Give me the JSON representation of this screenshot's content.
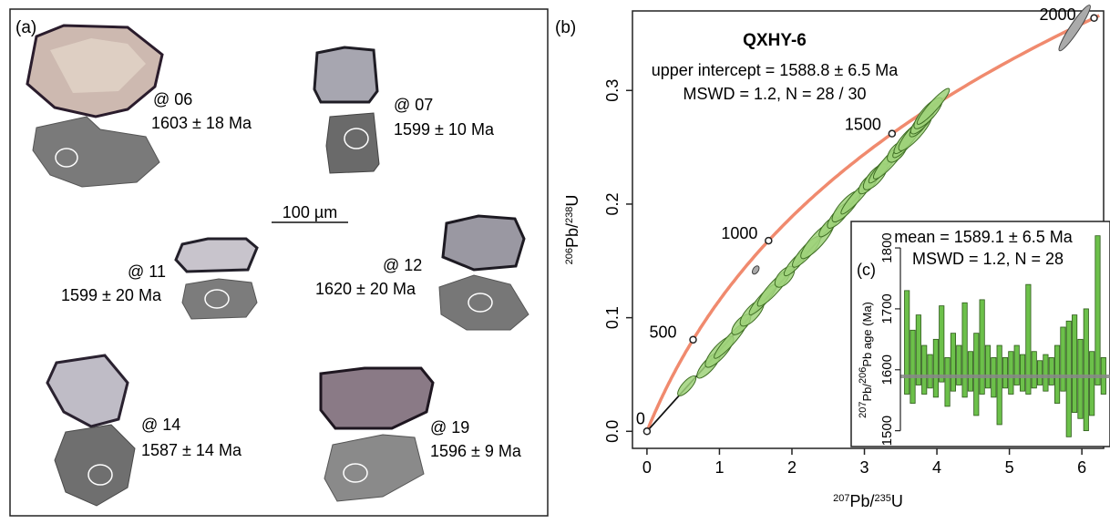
{
  "panel_a": {
    "label": "(a)",
    "scale_bar": "100 µm",
    "grains": [
      {
        "spot": "@ 06",
        "age": "1603 ± 18 Ma"
      },
      {
        "spot": "@ 07",
        "age": "1599 ± 10 Ma"
      },
      {
        "spot": "@ 11",
        "age": "1599 ± 20 Ma"
      },
      {
        "spot": "@ 12",
        "age": "1620 ± 20 Ma"
      },
      {
        "spot": "@ 14",
        "age": "1587 ± 14 Ma"
      },
      {
        "spot": "@ 19",
        "age": "1596 ± 9 Ma"
      }
    ]
  },
  "colors": {
    "concordia": "#f08a6e",
    "ellipse_fill": "#9fd27a",
    "ellipse_stroke": "#3f6e24",
    "excluded_fill": "#aaaaaa",
    "bar_fill": "#6cc04a",
    "mean_line": "#888888"
  },
  "chart_data": [
    {
      "type": "scatter",
      "panel_label": "(b)",
      "title": "QXHY-6",
      "annotation_lines": [
        "upper intercept = 1588.8 ± 6.5 Ma",
        "MSWD = 1.2, N = 28 / 30"
      ],
      "xlabel": "207Pb/235U",
      "ylabel": "206Pb/238U",
      "xlim": [
        -0.2,
        6.3
      ],
      "ylim": [
        -0.015,
        0.37
      ],
      "xticks": [
        0,
        1,
        2,
        3,
        4,
        5,
        6
      ],
      "yticks": [
        0.0,
        0.1,
        0.2,
        0.3
      ],
      "concordia_age_labels_Ma": [
        0,
        500,
        1000,
        1500,
        2000
      ],
      "discordia_line": {
        "x": [
          0,
          4.0
        ],
        "y": [
          0,
          0.284
        ]
      },
      "ellipses_included": [
        {
          "x": 0.55,
          "y": 0.04
        },
        {
          "x": 0.85,
          "y": 0.058
        },
        {
          "x": 1.0,
          "y": 0.07
        },
        {
          "x": 1.15,
          "y": 0.08
        },
        {
          "x": 1.3,
          "y": 0.094
        },
        {
          "x": 1.45,
          "y": 0.104
        },
        {
          "x": 1.6,
          "y": 0.116
        },
        {
          "x": 1.75,
          "y": 0.126
        },
        {
          "x": 1.9,
          "y": 0.136
        },
        {
          "x": 2.05,
          "y": 0.148
        },
        {
          "x": 2.2,
          "y": 0.158
        },
        {
          "x": 2.35,
          "y": 0.168
        },
        {
          "x": 2.5,
          "y": 0.18
        },
        {
          "x": 2.65,
          "y": 0.19
        },
        {
          "x": 2.75,
          "y": 0.198
        },
        {
          "x": 2.9,
          "y": 0.207
        },
        {
          "x": 3.05,
          "y": 0.218
        },
        {
          "x": 3.15,
          "y": 0.224
        },
        {
          "x": 3.25,
          "y": 0.232
        },
        {
          "x": 3.35,
          "y": 0.238
        },
        {
          "x": 3.45,
          "y": 0.246
        },
        {
          "x": 3.55,
          "y": 0.252
        },
        {
          "x": 3.6,
          "y": 0.258
        },
        {
          "x": 3.7,
          "y": 0.263
        },
        {
          "x": 3.75,
          "y": 0.268
        },
        {
          "x": 3.8,
          "y": 0.273
        },
        {
          "x": 3.88,
          "y": 0.28
        },
        {
          "x": 3.95,
          "y": 0.286
        }
      ],
      "ellipses_excluded": [
        {
          "x": 1.5,
          "y": 0.142
        },
        {
          "x": 5.9,
          "y": 0.355
        }
      ]
    },
    {
      "type": "bar",
      "panel_label": "(c)",
      "annotation_lines": [
        "mean = 1589.1 ± 6.5 Ma",
        "MSWD = 1.2, N = 28"
      ],
      "ylabel": "207Pb/206Pb age (Ma)",
      "ylim": [
        1480,
        1830
      ],
      "yticks": [
        1500,
        1600,
        1700,
        1800
      ],
      "mean": 1589.1,
      "series": [
        {
          "low": 1560,
          "high": 1730
        },
        {
          "low": 1545,
          "high": 1665
        },
        {
          "low": 1575,
          "high": 1690
        },
        {
          "low": 1560,
          "high": 1640
        },
        {
          "low": 1570,
          "high": 1625
        },
        {
          "low": 1555,
          "high": 1650
        },
        {
          "low": 1580,
          "high": 1705
        },
        {
          "low": 1540,
          "high": 1620
        },
        {
          "low": 1565,
          "high": 1660
        },
        {
          "low": 1575,
          "high": 1640
        },
        {
          "low": 1555,
          "high": 1710
        },
        {
          "low": 1565,
          "high": 1630
        },
        {
          "low": 1525,
          "high": 1660
        },
        {
          "low": 1560,
          "high": 1715
        },
        {
          "low": 1570,
          "high": 1640
        },
        {
          "low": 1555,
          "high": 1620
        },
        {
          "low": 1510,
          "high": 1640
        },
        {
          "low": 1570,
          "high": 1620
        },
        {
          "low": 1560,
          "high": 1630
        },
        {
          "low": 1575,
          "high": 1640
        },
        {
          "low": 1565,
          "high": 1625
        },
        {
          "low": 1560,
          "high": 1740
        },
        {
          "low": 1570,
          "high": 1630
        },
        {
          "low": 1575,
          "high": 1615
        },
        {
          "low": 1565,
          "high": 1625
        },
        {
          "low": 1575,
          "high": 1620
        },
        {
          "low": 1545,
          "high": 1640
        },
        {
          "low": 1565,
          "high": 1670
        },
        {
          "low": 1490,
          "high": 1680
        },
        {
          "low": 1530,
          "high": 1690
        },
        {
          "low": 1520,
          "high": 1650
        },
        {
          "low": 1500,
          "high": 1700
        },
        {
          "low": 1525,
          "high": 1630
        },
        {
          "low": 1575,
          "high": 1820
        },
        {
          "low": 1560,
          "high": 1620
        }
      ]
    }
  ]
}
